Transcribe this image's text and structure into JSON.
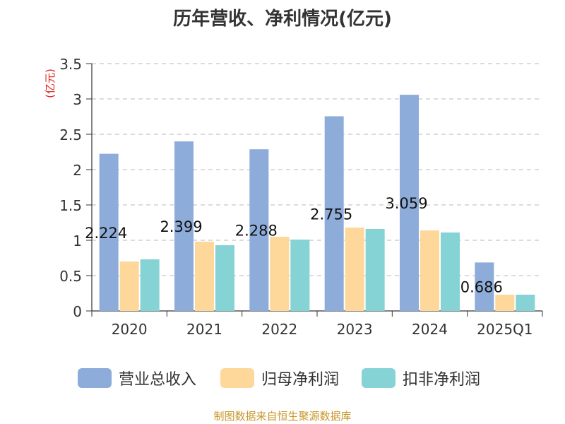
{
  "chart_data": {
    "type": "bar",
    "title": "历年营收、净利情况(亿元)",
    "ylabel": "(亿元)",
    "ylim": [
      0,
      3.5
    ],
    "yticks": [
      0,
      0.5,
      1,
      1.5,
      2,
      2.5,
      3,
      3.5
    ],
    "ytick_labels": [
      "0",
      "0.5",
      "1",
      "1.5",
      "2",
      "2.5",
      "3",
      "3.5"
    ],
    "grid": true,
    "legend_position": "bottom",
    "categories": [
      "2020",
      "2021",
      "2022",
      "2023",
      "2024",
      "2025Q1"
    ],
    "series": [
      {
        "name": "营业总收入",
        "color": "#8eacd9",
        "values": [
          2.224,
          2.399,
          2.288,
          2.755,
          3.059,
          0.686
        ],
        "data_labels": [
          "2.224",
          "2.399",
          "2.288",
          "2.755",
          "3.059",
          "0.686"
        ]
      },
      {
        "name": "归母净利润",
        "color": "#fdd89a",
        "values": [
          0.7,
          0.98,
          1.05,
          1.18,
          1.14,
          0.23
        ]
      },
      {
        "name": "扣非净利润",
        "color": "#86d3d6",
        "values": [
          0.73,
          0.93,
          1.01,
          1.16,
          1.11,
          0.23
        ]
      }
    ]
  },
  "source": "制图数据来自恒生聚源数据库"
}
